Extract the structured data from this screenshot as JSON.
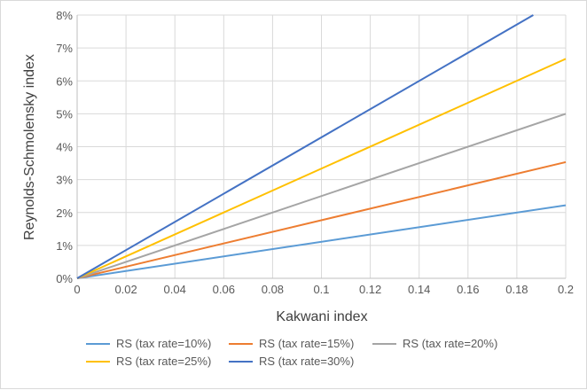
{
  "chart_data": {
    "type": "line",
    "xlabel": "Kakwani index",
    "ylabel": "Reynolds-Schmolensky index",
    "xlim": [
      0,
      0.2
    ],
    "ylim": [
      0,
      0.08
    ],
    "x_ticks": [
      "0",
      "0.02",
      "0.04",
      "0.06",
      "0.08",
      "0.1",
      "0.12",
      "0.14",
      "0.16",
      "0.18",
      "0.2"
    ],
    "y_ticks": [
      "0%",
      "1%",
      "2%",
      "3%",
      "4%",
      "5%",
      "6%",
      "7%",
      "8%"
    ],
    "grid": true,
    "legend_position": "bottom",
    "series": [
      {
        "name": "RS (tax rate=10%)",
        "color": "#5b9bd5",
        "x": [
          0,
          0.2
        ],
        "y": [
          0,
          0.0222
        ]
      },
      {
        "name": "RS (tax rate=15%)",
        "color": "#ed7d31",
        "x": [
          0,
          0.2
        ],
        "y": [
          0,
          0.0353
        ]
      },
      {
        "name": "RS (tax rate=20%)",
        "color": "#a5a5a5",
        "x": [
          0,
          0.2
        ],
        "y": [
          0,
          0.05
        ]
      },
      {
        "name": "RS (tax rate=25%)",
        "color": "#ffc000",
        "x": [
          0,
          0.2
        ],
        "y": [
          0,
          0.0667
        ]
      },
      {
        "name": "RS (tax rate=30%)",
        "color": "#4472c4",
        "x": [
          0,
          0.1867
        ],
        "y": [
          0,
          0.08
        ]
      }
    ]
  }
}
